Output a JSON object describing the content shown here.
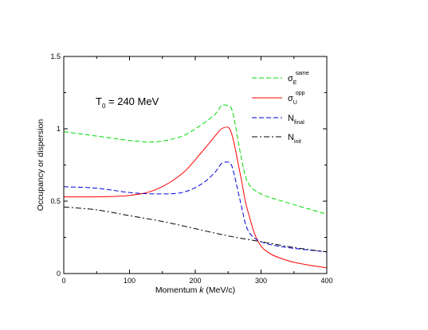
{
  "chart_data": {
    "type": "line",
    "xlabel": "Momentum k (MeV/c)",
    "xlabel_parts": {
      "before": "Momentum ",
      "italic": "k",
      "after": " (MeV/c)"
    },
    "ylabel": "Occupancy or dispersion",
    "xlim": [
      0,
      400
    ],
    "ylim": [
      0,
      1.5
    ],
    "x_ticks": [
      0,
      100,
      200,
      300,
      400
    ],
    "x_tick_labels": [
      "0",
      "100",
      "200",
      "300",
      "400"
    ],
    "y_ticks": [
      0,
      0.5,
      1,
      1.5
    ],
    "y_tick_labels": [
      "0",
      "0.5",
      "1",
      "1.5"
    ],
    "grid": false,
    "legend_position": "top-right",
    "annotation": {
      "base": "T",
      "sub": "0",
      "rest": " = 240 MeV"
    },
    "series": [
      {
        "name": "σE same",
        "label_base": "σ",
        "label_sub": "E",
        "label_sup": "same",
        "color": "#00dd00",
        "dash": "dashed",
        "x": [
          0,
          50,
          100,
          140,
          180,
          210,
          230,
          240,
          250,
          255,
          260,
          270,
          280,
          300,
          340,
          400
        ],
        "y": [
          0.98,
          0.95,
          0.92,
          0.91,
          0.95,
          1.03,
          1.1,
          1.16,
          1.16,
          1.14,
          1.05,
          0.8,
          0.63,
          0.55,
          0.49,
          0.41
        ]
      },
      {
        "name": "σU opp",
        "label_base": "σ",
        "label_sub": "U",
        "label_sup": "opp",
        "color": "#ff0000",
        "dash": "solid",
        "x": [
          0,
          50,
          100,
          140,
          180,
          210,
          230,
          240,
          250,
          255,
          260,
          270,
          280,
          300,
          340,
          400
        ],
        "y": [
          0.53,
          0.53,
          0.54,
          0.58,
          0.69,
          0.84,
          0.95,
          1.0,
          1.01,
          0.97,
          0.88,
          0.65,
          0.43,
          0.19,
          0.09,
          0.04
        ]
      },
      {
        "name": "Nfinal",
        "label_base": "N",
        "label_sub": "final",
        "label_sup": "",
        "color": "#0000dd",
        "dash": "dashed",
        "x": [
          0,
          50,
          100,
          140,
          180,
          210,
          230,
          240,
          250,
          255,
          260,
          270,
          280,
          300,
          340,
          400
        ],
        "y": [
          0.6,
          0.59,
          0.56,
          0.55,
          0.56,
          0.62,
          0.7,
          0.76,
          0.77,
          0.75,
          0.67,
          0.47,
          0.3,
          0.22,
          0.18,
          0.15
        ]
      },
      {
        "name": "Ninit",
        "label_base": "N",
        "label_sub": "init",
        "label_sup": "",
        "color": "#000000",
        "dash": "dashdot",
        "x": [
          0,
          50,
          100,
          150,
          200,
          250,
          300,
          350,
          400
        ],
        "y": [
          0.46,
          0.44,
          0.4,
          0.36,
          0.31,
          0.26,
          0.22,
          0.18,
          0.15
        ]
      }
    ]
  }
}
